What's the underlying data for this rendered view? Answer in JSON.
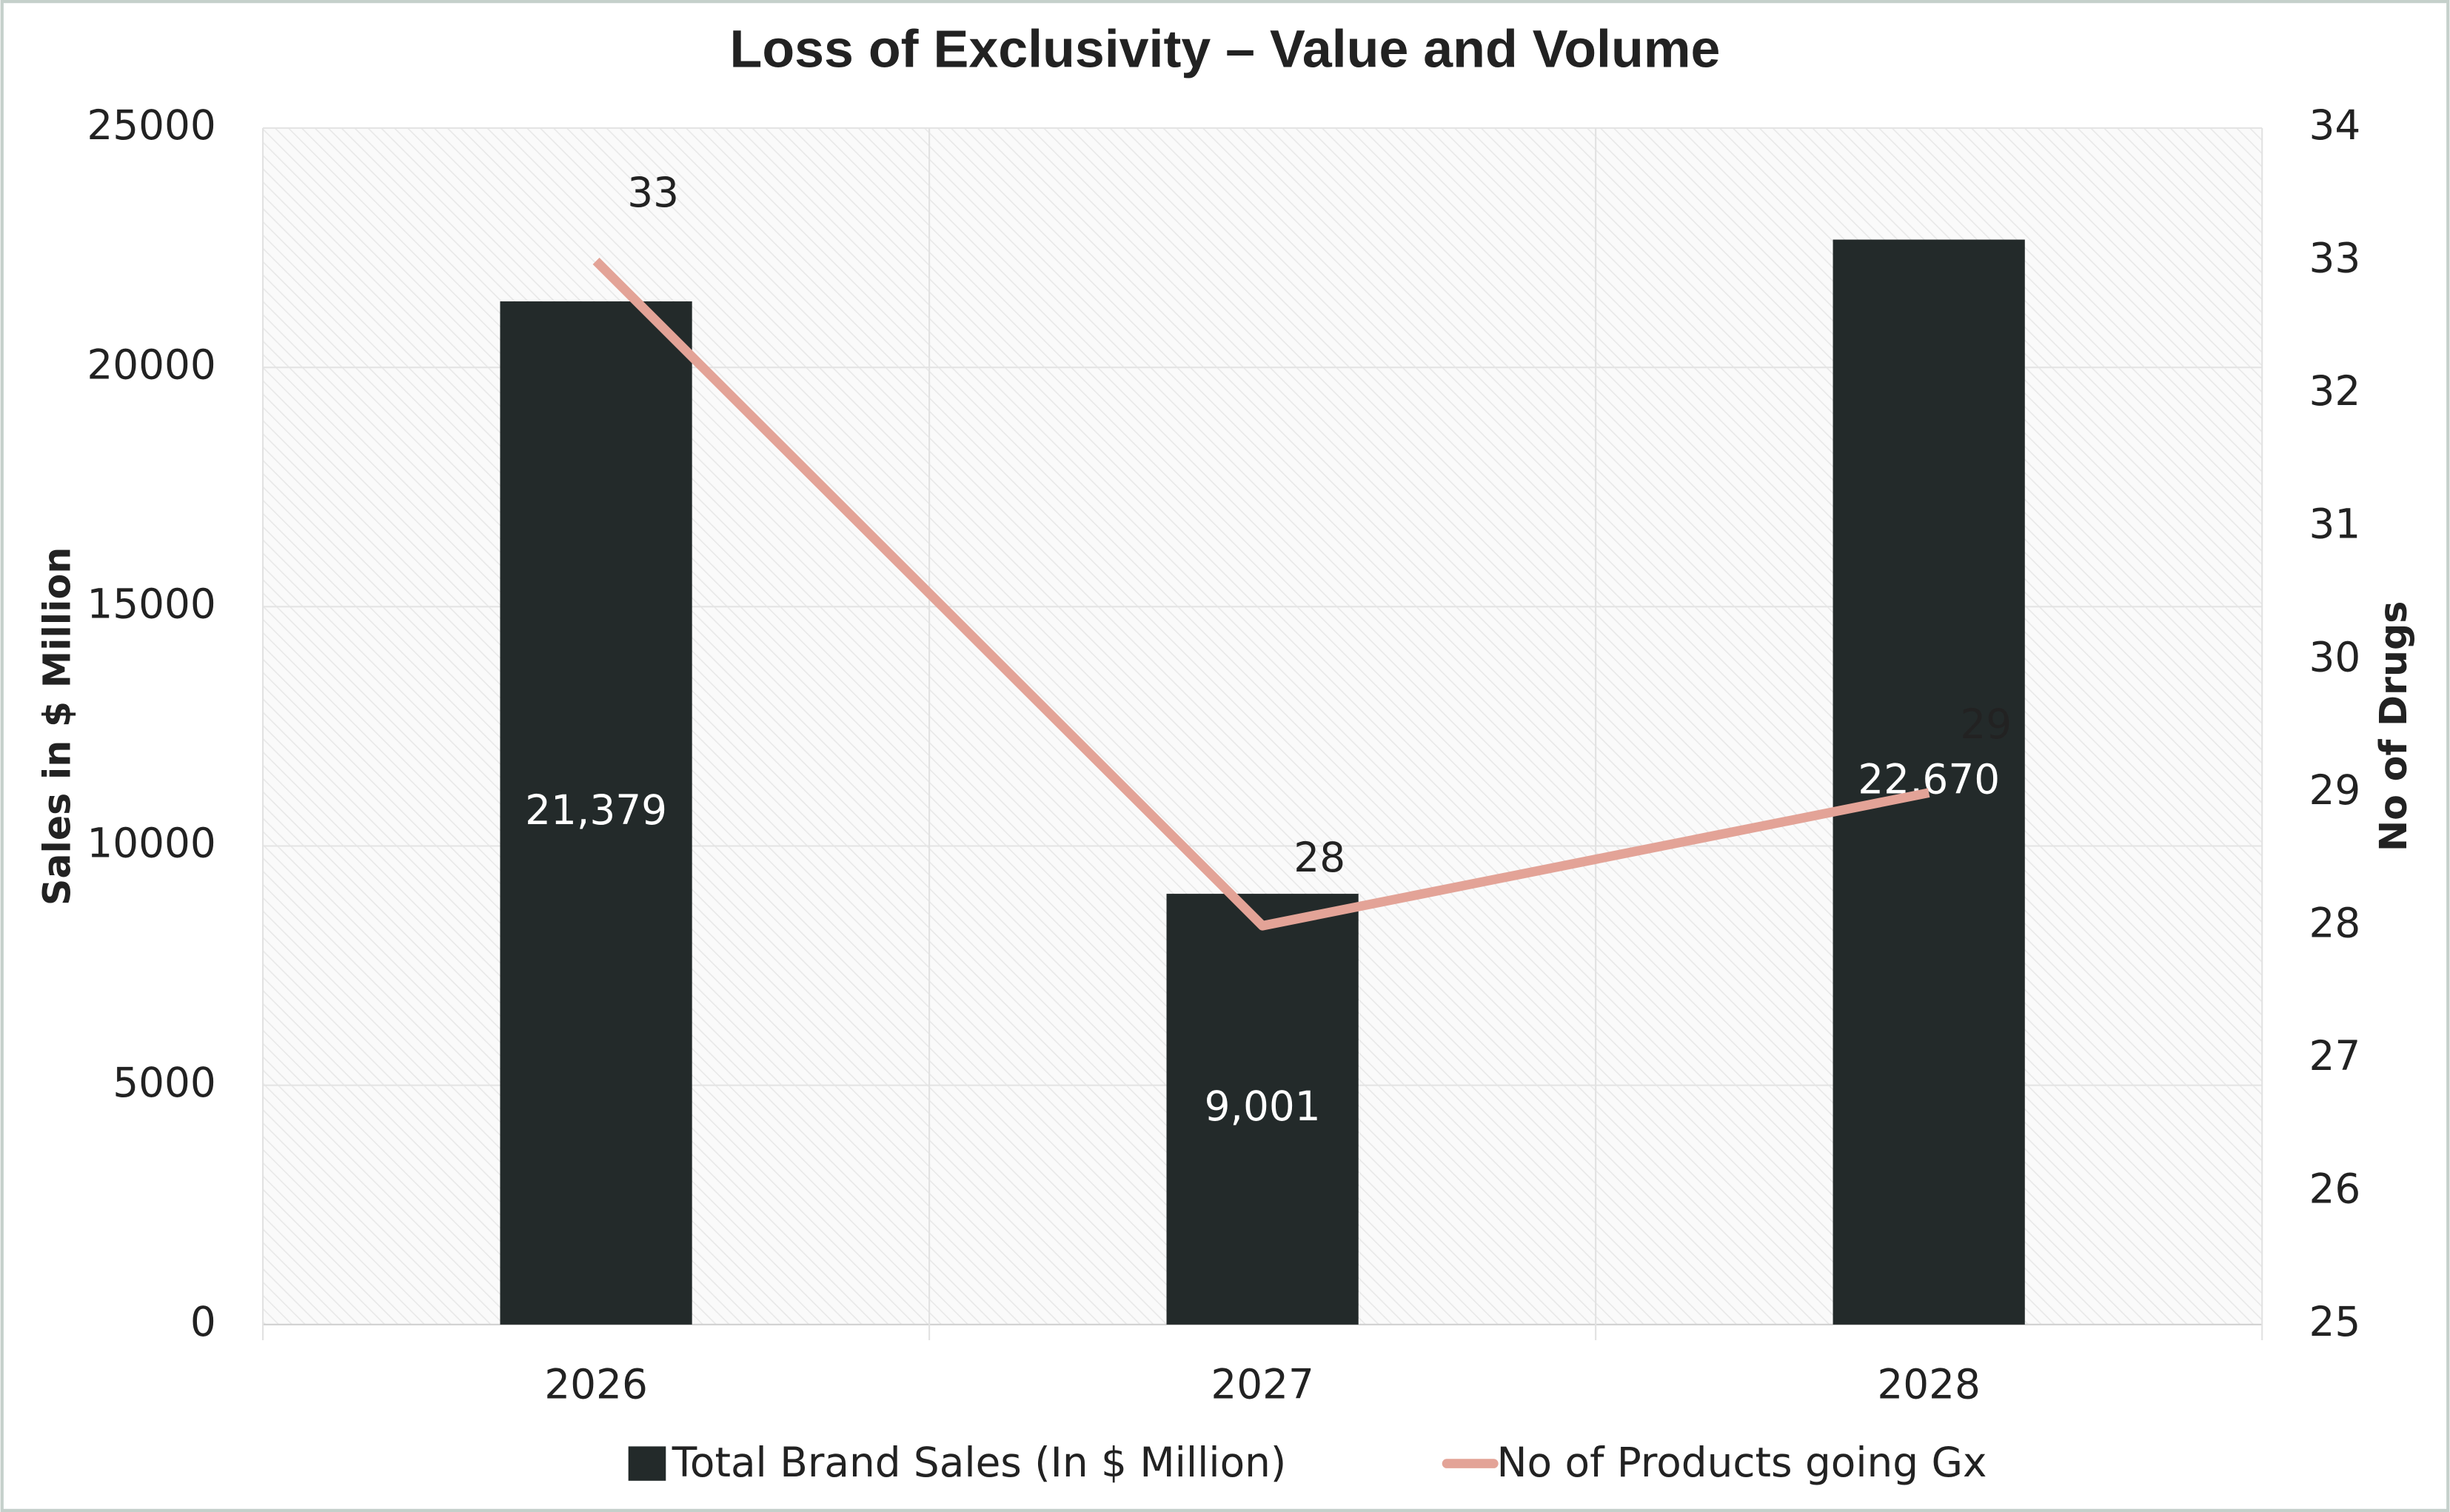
{
  "chart_data": {
    "type": "bar",
    "title": "Loss of Exclusivity – Value and Volume",
    "categories": [
      "2026",
      "2027",
      "2028"
    ],
    "series": [
      {
        "name": "Total Brand Sales (In $ Million)",
        "type": "bar",
        "color": "#232a2a",
        "values": [
          21379,
          9001,
          22670
        ],
        "value_labels": [
          "21,379",
          "9,001",
          "22,670"
        ]
      },
      {
        "name": "No of Products going Gx",
        "type": "line",
        "axis": "y2",
        "color": "#e3a397",
        "values": [
          33,
          28,
          29
        ]
      }
    ],
    "ylabel": "Sales in $ Million",
    "y2label": "No of Drugs",
    "ylim": [
      0,
      25000
    ],
    "yticks": [
      0,
      5000,
      10000,
      15000,
      20000,
      25000
    ],
    "y2lim": [
      25,
      34
    ],
    "y2ticks": [
      25,
      26,
      27,
      28,
      29,
      30,
      31,
      32,
      33,
      34
    ],
    "grid": true,
    "legend": "bottom"
  }
}
